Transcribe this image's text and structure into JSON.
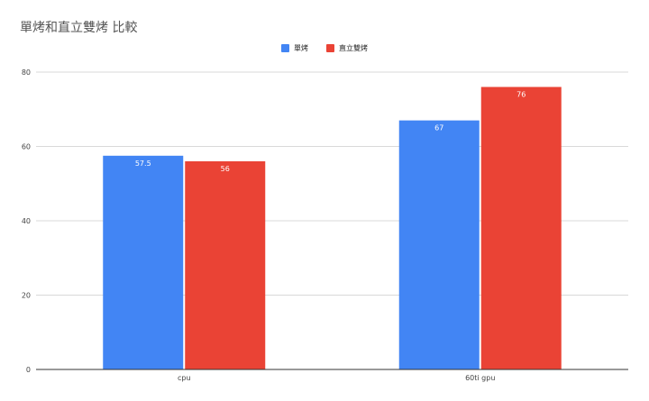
{
  "chart_data": {
    "type": "bar",
    "title": "單烤和直立雙烤 比較",
    "categories": [
      "cpu",
      "60ti gpu"
    ],
    "series": [
      {
        "name": "單烤",
        "values": [
          57.5,
          67
        ],
        "color": "#4285f4"
      },
      {
        "name": "直立雙烤",
        "values": [
          56,
          76
        ],
        "color": "#ea4335"
      }
    ],
    "ylim": [
      0,
      80
    ],
    "yticks": [
      0,
      20,
      40,
      60,
      80
    ],
    "xlabel": "",
    "ylabel": "",
    "grid": true,
    "legend": "top-center"
  }
}
